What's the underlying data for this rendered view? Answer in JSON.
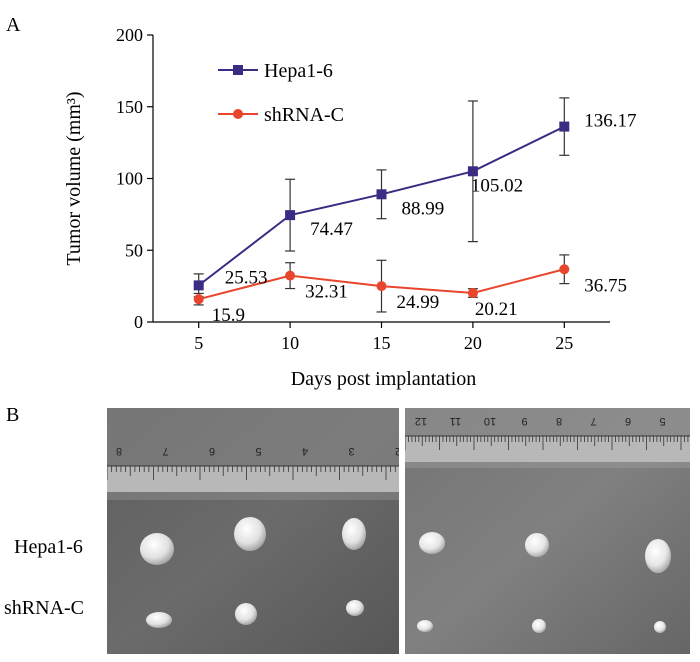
{
  "panel_a_label": "A",
  "panel_b_label": "B",
  "chart_data": {
    "type": "line",
    "x": [
      5,
      10,
      15,
      20,
      25
    ],
    "xlabel": "Days post implantation",
    "ylabel": "Tumor volume (mm³)",
    "ylim": [
      0,
      200
    ],
    "yticks": [
      0,
      50,
      100,
      150,
      200
    ],
    "xticks": [
      5,
      10,
      15,
      20,
      25
    ],
    "grid": false,
    "legend": "top-left",
    "series": [
      {
        "name": "Hepa1-6",
        "color": "#3b2b82",
        "marker": "square",
        "values": [
          25.53,
          74.47,
          88.99,
          105.02,
          136.17
        ],
        "error": [
          8,
          25,
          17,
          49,
          20
        ],
        "labels": [
          "25.53",
          "74.47",
          "88.99",
          "105.02",
          "136.17"
        ]
      },
      {
        "name": "shRNA-C",
        "color": "#e8452c",
        "marker": "circle",
        "values": [
          15.9,
          32.31,
          24.99,
          20.21,
          36.75
        ],
        "error": [
          4,
          9,
          18,
          3,
          10
        ],
        "labels": [
          "15.9",
          "32.31",
          "24.99",
          "20.21",
          "36.75"
        ]
      }
    ]
  },
  "photo": {
    "row_labels": [
      "Hepa1-6",
      "shRNA-C"
    ],
    "left_ruler_numbers": [
      "8",
      "7",
      "6",
      "5",
      "4",
      "3",
      "2"
    ],
    "right_ruler_numbers": [
      "12",
      "11",
      "10",
      "9",
      "8",
      "7",
      "6",
      "5"
    ]
  }
}
